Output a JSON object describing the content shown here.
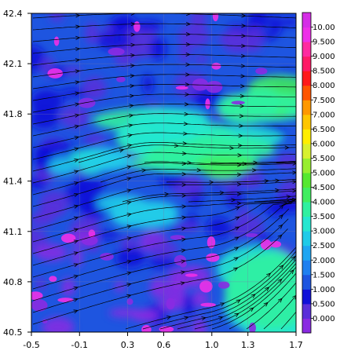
{
  "chart_data": {
    "type": "heatmap",
    "title": "",
    "xlabel": "",
    "ylabel": "",
    "xlim": [
      -0.5,
      1.7
    ],
    "ylim": [
      40.5,
      42.4
    ],
    "x_ticks": [
      "-0.5",
      "-0.1",
      "0.3",
      "0.6",
      "1.0",
      "1.3",
      "1.7"
    ],
    "y_ticks": [
      "40.5",
      "40.8",
      "41.1",
      "41.4",
      "41.8",
      "42.1",
      "42.4"
    ],
    "grid": true,
    "overlay": "streamlines",
    "colorbar": {
      "placement": "right",
      "labels": [
        "0.000",
        "0.500",
        "1.000",
        "1.500",
        "2.000",
        "2.500",
        "3.000",
        "3.500",
        "4.000",
        "4.500",
        "5.000",
        "5.500",
        "6.000",
        "6.500",
        "7.000",
        "7.500",
        "8.000",
        "8.500",
        "9.000",
        "9.500",
        "10.00"
      ],
      "colors": [
        "#8a2be2",
        "#5a2fd9",
        "#1010d8",
        "#1e55e0",
        "#2080f0",
        "#20a6f2",
        "#20cbe8",
        "#25e7d0",
        "#30f0a0",
        "#40ee60",
        "#56e830",
        "#98ee30",
        "#d8f030",
        "#ffee00",
        "#ffc600",
        "#ff9800",
        "#ff5500",
        "#ff1a1a",
        "#ff1a66",
        "#ff2aa0",
        "#ee30e8",
        "#d52ee6"
      ]
    }
  }
}
